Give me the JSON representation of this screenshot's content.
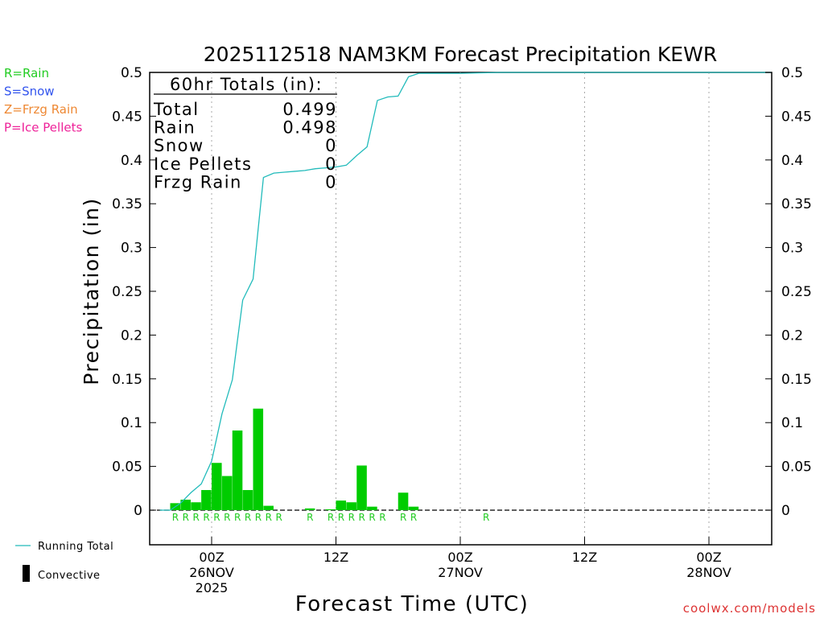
{
  "page": {
    "credit": "coolwx.com/models",
    "legend_left": [
      {
        "text": "R=Rain",
        "color": "#22cc22"
      },
      {
        "text": "S=Snow",
        "color": "#3355ee"
      },
      {
        "text": "Z=Frzg Rain",
        "color": "#ee8833"
      },
      {
        "text": "P=Ice Pellets",
        "color": "#ee2299"
      }
    ],
    "legend_bottom": {
      "running_total": "Running Total",
      "convective": "Convective"
    },
    "totals_box": {
      "title": "60hr Totals (in):",
      "rows": [
        {
          "label": "Total",
          "value": "0.499"
        },
        {
          "label": "Rain",
          "value": "0.498"
        },
        {
          "label": "Snow",
          "value": "0"
        },
        {
          "label": "Ice Pellets",
          "value": "0"
        },
        {
          "label": "Frzg Rain",
          "value": "0"
        }
      ]
    },
    "colors": {
      "bar": "#00cc00",
      "running_total": "#22bbbb",
      "rain_marker": "#22cc22",
      "credit": "#dd3333"
    }
  },
  "chart_data": {
    "type": "bar",
    "title": "2025112518 NAM3KM Forecast Precipitation KEWR",
    "xlabel": "Forecast Time (UTC)",
    "ylabel": "Precipitation (in)",
    "ylim": [
      -0.04,
      0.5
    ],
    "yticks": [
      0,
      0.05,
      0.1,
      0.15,
      0.2,
      0.25,
      0.3,
      0.35,
      0.4,
      0.45,
      0.5
    ],
    "ytick_labels": [
      "0",
      "0.05",
      "0.1",
      "0.15",
      "0.2",
      "0.25",
      "0.3",
      "0.35",
      "0.4",
      "0.45",
      "0.5"
    ],
    "x_unit": "forecast hour",
    "xlim": [
      -6,
      54
    ],
    "xticks": [
      {
        "x": 0,
        "lines": [
          "00Z",
          "26NOV",
          "2025"
        ]
      },
      {
        "x": 12,
        "lines": [
          "12Z"
        ]
      },
      {
        "x": 24,
        "lines": [
          "00Z",
          "27NOV"
        ]
      },
      {
        "x": 36,
        "lines": [
          "12Z"
        ]
      },
      {
        "x": 48,
        "lines": [
          "00Z",
          "28NOV"
        ]
      }
    ],
    "bars": {
      "name": "Hourly Precipitation",
      "x": [
        -3,
        -2,
        -1,
        0,
        1,
        2,
        3,
        4,
        5,
        6,
        10,
        12,
        13,
        14,
        15,
        16,
        17,
        19,
        20
      ],
      "values": [
        0.008,
        0.012,
        0.009,
        0.023,
        0.054,
        0.039,
        0.091,
        0.023,
        0.116,
        0.005,
        0.002,
        0.001,
        0.011,
        0.009,
        0.051,
        0.004,
        0.0,
        0.02,
        0.004
      ]
    },
    "running_total": {
      "name": "Running Total",
      "x": [
        -5,
        -4,
        -3,
        -2,
        -1,
        0,
        1,
        2,
        3,
        4,
        5,
        6,
        7,
        8,
        9,
        10,
        11,
        12,
        13,
        14,
        15,
        16,
        17,
        18,
        19,
        20,
        22,
        24,
        28,
        32,
        40,
        48,
        54
      ],
      "values": [
        0,
        0,
        0.008,
        0.02,
        0.03,
        0.056,
        0.11,
        0.149,
        0.24,
        0.264,
        0.38,
        0.385,
        0.386,
        0.387,
        0.388,
        0.39,
        0.391,
        0.392,
        0.394,
        0.405,
        0.415,
        0.468,
        0.472,
        0.473,
        0.495,
        0.499,
        0.499,
        0.499,
        0.5,
        0.5,
        0.5,
        0.5,
        0.5
      ]
    },
    "ptype_markers": {
      "label": "R",
      "x": [
        -3,
        -2,
        -1,
        0,
        1,
        2,
        3,
        4,
        5,
        6,
        7,
        10,
        12,
        13,
        14,
        15,
        16,
        17,
        19,
        20,
        27
      ]
    }
  }
}
